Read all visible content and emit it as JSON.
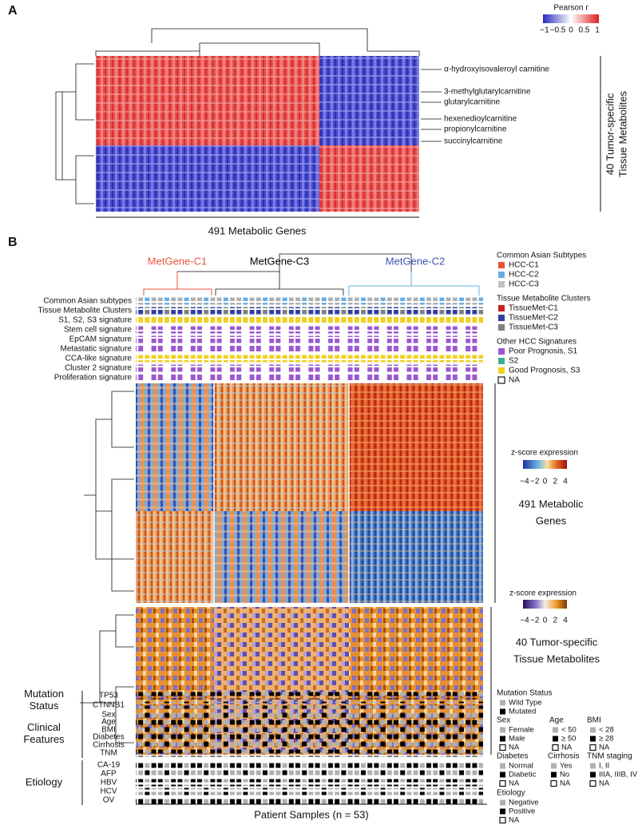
{
  "panel_a": {
    "label": "A",
    "legend_title": "Pearson r",
    "legend_ticks": [
      "−1",
      "−0.5",
      "0",
      "0.5",
      "1"
    ],
    "metabolite_labels": [
      "α-hydroxyisovaleroyl carnitine",
      "3-methylglutarylcarnitine",
      "glutarylcarnitine",
      "hexenedioylcarnitine",
      "propionylcarnitine",
      "succinylcarnitine"
    ],
    "row_axis_label": [
      "40 Tumor-specific",
      "Tissue Metabolites"
    ],
    "column_axis_label": "491 Metabolic Genes"
  },
  "panel_b": {
    "label": "B",
    "clusters": [
      {
        "label": "MetGene-C1",
        "color": "#e8553f"
      },
      {
        "label": "MetGene-C3",
        "color": "#000000"
      },
      {
        "label": "MetGene-C2",
        "color": "#3a55b0"
      }
    ],
    "annotation_tracks": [
      "Common Asian subtypes",
      "Tissue Metabolite Clusters",
      "S1, S2, S3 signature",
      "Stem cell signature",
      "EpCAM signature",
      "Metastatic signature",
      "CCA-like signature",
      "Cluster 2 signature",
      "Proliferation signature"
    ],
    "legend_groups": [
      {
        "title": "Common Asian Subtypes",
        "items": [
          {
            "label": "HCC-C1",
            "color": "#e8513a"
          },
          {
            "label": "HCC-C2",
            "color": "#6aaee0"
          },
          {
            "label": "HCC-C3",
            "color": "#c0c0c0"
          }
        ]
      },
      {
        "title": "Tissue Metabolite Clusters",
        "items": [
          {
            "label": "TissueMet-C1",
            "color": "#cc2020"
          },
          {
            "label": "TissueMet-C2",
            "color": "#3040a0"
          },
          {
            "label": "TissueMet-C3",
            "color": "#808080"
          }
        ]
      },
      {
        "title": "Other HCC Signatures",
        "items": [
          {
            "label": "Poor Prognosis, S1",
            "color": "#9b59d0"
          },
          {
            "label": "S2",
            "color": "#3cb08a"
          },
          {
            "label": "Good Prognosis, S3",
            "color": "#f0d020"
          },
          {
            "label": "NA",
            "color": "none"
          }
        ]
      }
    ],
    "gene_heatmap_label": [
      "491 Metabolic",
      "Genes"
    ],
    "zscore_title": "z-score expression",
    "zscore_ticks": [
      "−4",
      "−2",
      "0",
      "2",
      "4"
    ],
    "metabolite_heatmap_label": [
      "40 Tumor-specific",
      "Tissue Metabolites"
    ],
    "metabolite_zscore_title": "z-score expression",
    "metabolite_zscore_ticks": [
      "−4",
      "−2",
      "0",
      "2",
      "4"
    ],
    "bottom_groups": [
      {
        "title": [
          "Mutation",
          "Status"
        ],
        "rows": [
          "TP53",
          "CTNNB1"
        ]
      },
      {
        "title": [
          "Clinical",
          "Features"
        ],
        "rows": [
          "Sex",
          "Age",
          "BMI",
          "Diabetes",
          "Cirrhosis",
          "TNM"
        ]
      },
      {
        "title": [
          "Etiology"
        ],
        "rows": [
          "CA-19",
          "AFP",
          "HBV",
          "HCV",
          "OV"
        ]
      }
    ],
    "sample_axis_label": "Patient Samples (n = 53)",
    "clinical_legend": [
      {
        "title": "Mutation Status",
        "items": [
          {
            "label": "Wild Type",
            "color": "#b0b0b0"
          },
          {
            "label": "Mutated",
            "color": "#000000"
          }
        ]
      },
      {
        "title": "Sex",
        "items": [
          {
            "label": "Female",
            "color": "#b0b0b0"
          },
          {
            "label": "Male",
            "color": "#000000"
          },
          {
            "label": "NA",
            "color": "none"
          }
        ]
      },
      {
        "title": "Age",
        "items": [
          {
            "label": "< 50",
            "color": "#b0b0b0"
          },
          {
            "label": "≥ 50",
            "color": "#000000"
          },
          {
            "label": "NA",
            "color": "none"
          }
        ]
      },
      {
        "title": "BMI",
        "items": [
          {
            "label": "< 28",
            "color": "#b0b0b0"
          },
          {
            "label": "≥ 28",
            "color": "#000000"
          },
          {
            "label": "NA",
            "color": "none"
          }
        ]
      },
      {
        "title": "Diabetes",
        "items": [
          {
            "label": "Normal",
            "color": "#b0b0b0"
          },
          {
            "label": "Diabetic",
            "color": "#000000"
          },
          {
            "label": "NA",
            "color": "none"
          }
        ]
      },
      {
        "title": "Cirrhosis",
        "items": [
          {
            "label": "Yes",
            "color": "#b0b0b0"
          },
          {
            "label": "No",
            "color": "#000000"
          },
          {
            "label": "NA",
            "color": "none"
          }
        ]
      },
      {
        "title": "TNM staging",
        "items": [
          {
            "label": "I, II",
            "color": "#b0b0b0"
          },
          {
            "label": "IIIA, IIIB, IV",
            "color": "#000000"
          },
          {
            "label": "NA",
            "color": "none"
          }
        ]
      },
      {
        "title": "Etiology",
        "items": [
          {
            "label": "Negative",
            "color": "#b0b0b0"
          },
          {
            "label": "Positive",
            "color": "#000000"
          },
          {
            "label": "NA",
            "color": "none"
          }
        ]
      }
    ]
  }
}
